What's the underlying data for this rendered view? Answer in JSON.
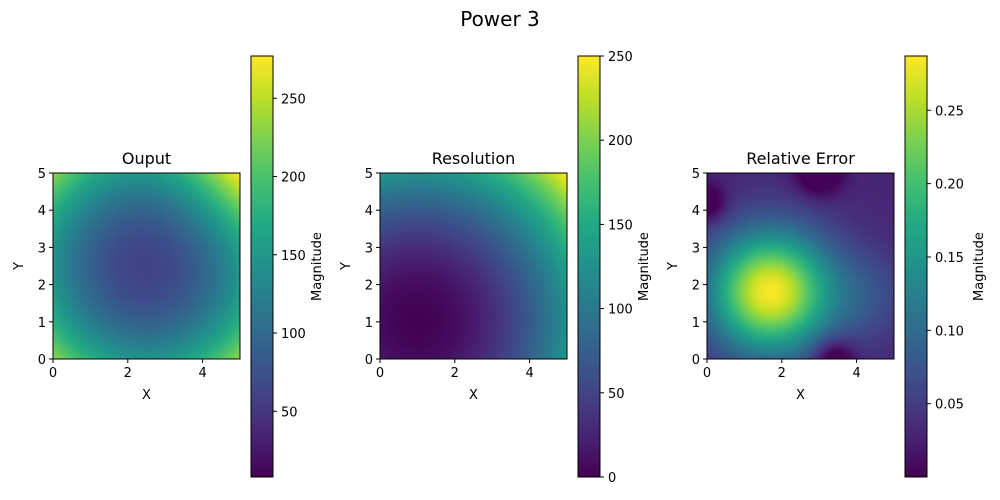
{
  "figure": {
    "title": "Power 3"
  },
  "chart_data": [
    {
      "type": "heatmap",
      "title": "Ouput",
      "xlabel": "X",
      "ylabel": "Y",
      "xlim": [
        0,
        5
      ],
      "ylim": [
        0,
        5
      ],
      "xticks": [
        0,
        2,
        4
      ],
      "yticks": [
        0,
        1,
        2,
        3,
        4,
        5
      ],
      "colormap": "viridis",
      "colorbar": {
        "label": "Magnitude",
        "range": [
          8,
          277
        ],
        "ticks": [
          50,
          100,
          150,
          200,
          250
        ]
      },
      "field": "output"
    },
    {
      "type": "heatmap",
      "title": "Resolution",
      "xlabel": "X",
      "ylabel": "Y",
      "xlim": [
        0,
        5
      ],
      "ylim": [
        0,
        5
      ],
      "xticks": [
        0,
        2,
        4
      ],
      "yticks": [
        0,
        1,
        2,
        3,
        4,
        5
      ],
      "colormap": "viridis",
      "colorbar": {
        "label": "Magnitude",
        "range": [
          0,
          250
        ],
        "ticks": [
          0,
          50,
          100,
          150,
          200,
          250
        ]
      },
      "field": "resolution"
    },
    {
      "type": "heatmap",
      "title": "Relative Error",
      "xlabel": "X",
      "ylabel": "Y",
      "xlim": [
        0,
        5
      ],
      "ylim": [
        0,
        5
      ],
      "xticks": [
        0,
        2,
        4
      ],
      "yticks": [
        0,
        1,
        2,
        3,
        4,
        5
      ],
      "colormap": "viridis",
      "colorbar": {
        "label": "Magnitude",
        "range": [
          0.0,
          0.287
        ],
        "ticks": [
          0.05,
          0.1,
          0.15,
          0.2,
          0.25
        ],
        "tick_labels": [
          "0.05",
          "0.10",
          "0.15",
          "0.20",
          "0.25"
        ]
      },
      "field": "relerr"
    }
  ]
}
